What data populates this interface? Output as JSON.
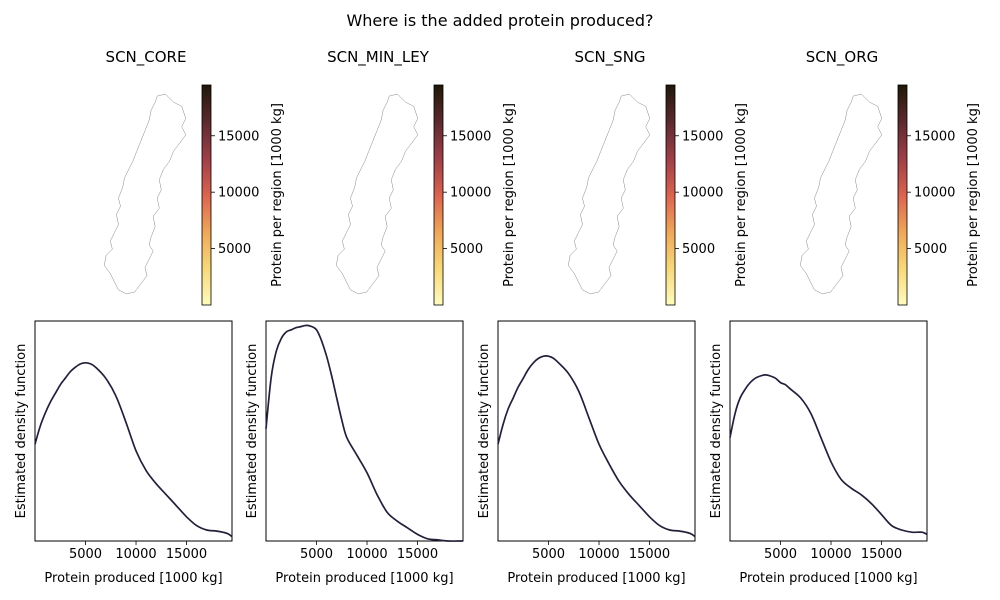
{
  "suptitle": "Where is the added protein produced?",
  "colormap": {
    "stops": [
      "#fffbbf",
      "#f7d87a",
      "#eea65a",
      "#d9634f",
      "#9d3f48",
      "#5b2a2e",
      "#201708"
    ],
    "region_border": "#7a7a7a"
  },
  "line_color": "#22203a",
  "chart_data": [
    {
      "type": "map",
      "title": "SCN_CORE",
      "colorbar": {
        "label": "Protein per region [1000 kg]",
        "range": [
          0,
          19500
        ],
        "ticks": [
          5000,
          10000,
          15000
        ],
        "tick_labels": [
          "5000",
          "10000",
          "15000"
        ]
      }
    },
    {
      "type": "map",
      "title": "SCN_MIN_LEY",
      "colorbar": {
        "label": "Protein per region [1000 kg]",
        "range": [
          0,
          19500
        ],
        "ticks": [
          5000,
          10000,
          15000
        ],
        "tick_labels": [
          "5000",
          "10000",
          "15000"
        ]
      }
    },
    {
      "type": "map",
      "title": "SCN_SNG",
      "colorbar": {
        "label": "Protein per region [1000 kg]",
        "range": [
          0,
          19500
        ],
        "ticks": [
          5000,
          10000,
          15000
        ],
        "tick_labels": [
          "5000",
          "10000",
          "15000"
        ]
      }
    },
    {
      "type": "map",
      "title": "SCN_ORG",
      "colorbar": {
        "label": "Protein per region [1000 kg]",
        "range": [
          0,
          19500
        ],
        "ticks": [
          5000,
          10000,
          15000
        ],
        "tick_labels": [
          "5000",
          "10000",
          "15000"
        ]
      }
    },
    {
      "type": "line",
      "xlabel": "Protein produced [1000 kg]",
      "ylabel": "Estimated density function",
      "xlim": [
        0,
        19500
      ],
      "ylim": [
        0,
        1.0
      ],
      "x_ticks": [
        5000,
        10000,
        15000
      ],
      "x_tick_labels": [
        "5000",
        "10000",
        "15000"
      ],
      "series": [
        {
          "x": [
            0,
            500,
            1000,
            1500,
            2000,
            2500,
            3000,
            3500,
            4000,
            4500,
            5000,
            5500,
            6000,
            7000,
            8000,
            9000,
            10000,
            11000,
            12000,
            13000,
            14000,
            15000,
            16000,
            17000,
            18000,
            19000,
            19500
          ],
          "y": [
            0.44,
            0.52,
            0.58,
            0.63,
            0.67,
            0.71,
            0.74,
            0.77,
            0.79,
            0.805,
            0.81,
            0.805,
            0.79,
            0.74,
            0.66,
            0.54,
            0.41,
            0.32,
            0.26,
            0.21,
            0.16,
            0.11,
            0.07,
            0.05,
            0.045,
            0.035,
            0.02
          ]
        }
      ]
    },
    {
      "type": "line",
      "xlabel": "Protein produced [1000 kg]",
      "ylabel": "Estimated density function",
      "xlim": [
        0,
        19500
      ],
      "ylim": [
        0,
        1.0
      ],
      "x_ticks": [
        5000,
        10000,
        15000
      ],
      "x_tick_labels": [
        "5000",
        "10000",
        "15000"
      ],
      "series": [
        {
          "x": [
            0,
            500,
            1000,
            1500,
            2000,
            2500,
            3000,
            3500,
            4000,
            4500,
            5000,
            5500,
            6000,
            6500,
            7000,
            7500,
            8000,
            9000,
            10000,
            11000,
            12000,
            13000,
            14000,
            15000,
            16000,
            17000,
            18000,
            19000,
            19500
          ],
          "y": [
            0.51,
            0.74,
            0.86,
            0.92,
            0.95,
            0.96,
            0.97,
            0.975,
            0.98,
            0.975,
            0.96,
            0.91,
            0.84,
            0.75,
            0.65,
            0.55,
            0.47,
            0.39,
            0.31,
            0.21,
            0.13,
            0.09,
            0.06,
            0.03,
            0.01,
            0.005,
            0.0,
            0.0,
            0.0
          ]
        }
      ]
    },
    {
      "type": "line",
      "xlabel": "Protein produced [1000 kg]",
      "ylabel": "Estimated density function",
      "xlim": [
        0,
        19500
      ],
      "ylim": [
        0,
        1.0
      ],
      "x_ticks": [
        5000,
        10000,
        15000
      ],
      "x_tick_labels": [
        "5000",
        "10000",
        "15000"
      ],
      "series": [
        {
          "x": [
            0,
            500,
            1000,
            1500,
            2000,
            2500,
            3000,
            3500,
            4000,
            4500,
            5000,
            5500,
            6000,
            7000,
            8000,
            9000,
            10000,
            11000,
            12000,
            13000,
            14000,
            15000,
            16000,
            17000,
            18000,
            19000,
            19500
          ],
          "y": [
            0.44,
            0.53,
            0.6,
            0.65,
            0.7,
            0.74,
            0.78,
            0.81,
            0.83,
            0.84,
            0.84,
            0.83,
            0.81,
            0.76,
            0.68,
            0.56,
            0.44,
            0.35,
            0.27,
            0.21,
            0.16,
            0.11,
            0.07,
            0.05,
            0.045,
            0.035,
            0.02
          ]
        }
      ]
    },
    {
      "type": "line",
      "xlabel": "Protein produced [1000 kg]",
      "ylabel": "Estimated density function",
      "xlim": [
        0,
        19500
      ],
      "ylim": [
        0,
        1.0
      ],
      "x_ticks": [
        5000,
        10000,
        15000
      ],
      "x_tick_labels": [
        "5000",
        "10000",
        "15000"
      ],
      "series": [
        {
          "x": [
            0,
            500,
            1000,
            1500,
            2000,
            2500,
            3000,
            3500,
            4000,
            4500,
            5000,
            5500,
            6000,
            7000,
            8000,
            9000,
            10000,
            11000,
            12000,
            13000,
            14000,
            15000,
            16000,
            17000,
            18000,
            19000,
            19500
          ],
          "y": [
            0.47,
            0.58,
            0.65,
            0.69,
            0.72,
            0.74,
            0.75,
            0.755,
            0.75,
            0.74,
            0.72,
            0.71,
            0.69,
            0.65,
            0.58,
            0.47,
            0.36,
            0.28,
            0.24,
            0.21,
            0.17,
            0.12,
            0.07,
            0.05,
            0.04,
            0.04,
            0.03
          ]
        }
      ]
    }
  ]
}
